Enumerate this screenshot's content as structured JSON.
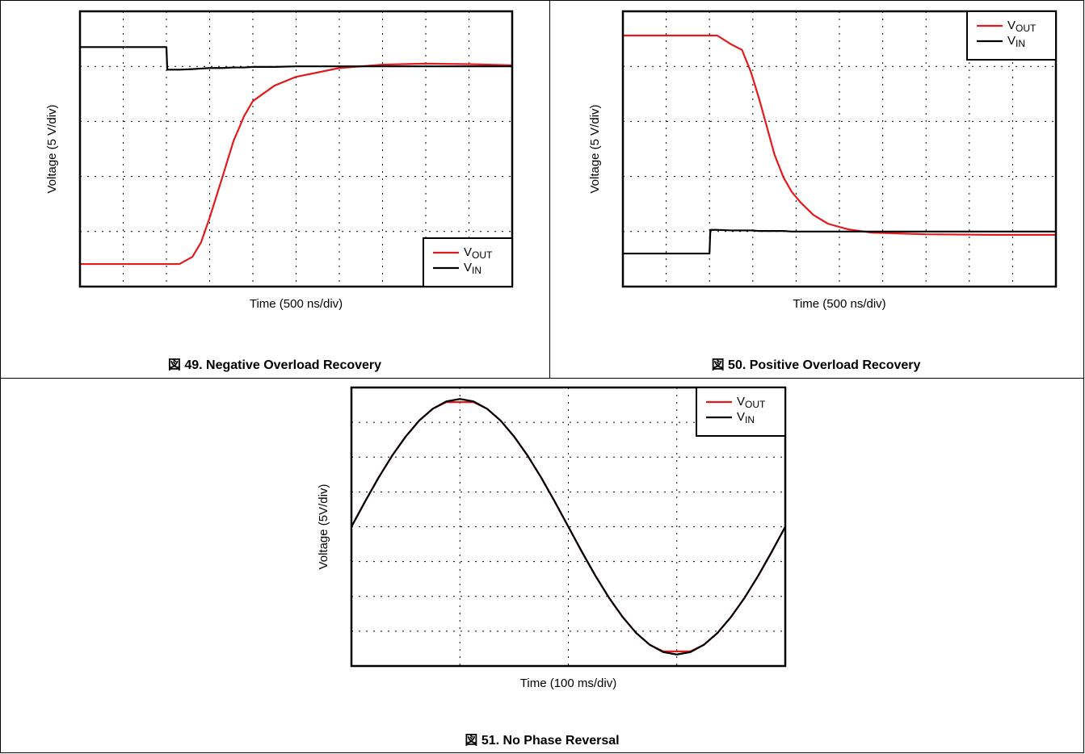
{
  "chart_data": [
    {
      "type": "line",
      "title": "図 49. Negative Overload Recovery",
      "xlabel": "Time (500 ns/div)",
      "ylabel": "Voltage (5 V/div)",
      "x": [
        0,
        1,
        2,
        2.02,
        2.1,
        2.3,
        2.6,
        2.8,
        3,
        3.3,
        3.55,
        3.8,
        4,
        4.5,
        5,
        6,
        7,
        8,
        9,
        10
      ],
      "series": [
        {
          "name": "VOUT",
          "color": "#e31a1c",
          "values": [
            0.41,
            0.41,
            0.41,
            0.41,
            0.41,
            0.41,
            0.54,
            0.8,
            1.25,
            2.0,
            2.64,
            3.1,
            3.37,
            3.65,
            3.81,
            3.97,
            4.03,
            4.05,
            4.04,
            4.02
          ]
        },
        {
          "name": "VIN",
          "color": "#000000",
          "values": [
            4.35,
            4.35,
            4.35,
            3.94,
            3.94,
            3.94,
            3.95,
            3.96,
            3.97,
            3.97,
            3.98,
            3.98,
            3.99,
            3.99,
            4,
            4,
            4,
            4,
            4,
            4
          ]
        }
      ],
      "xlim": [
        0,
        10
      ],
      "ylim": [
        0,
        5
      ],
      "xticks": [
        1,
        2,
        3,
        4,
        5,
        6,
        7,
        8,
        9
      ],
      "yticks": [
        1,
        2,
        3,
        4
      ],
      "grid": true,
      "legend": "lower right"
    },
    {
      "type": "line",
      "title": "図 50. Positive Overload Recovery",
      "xlabel": "Time (500 ns/div)",
      "ylabel": "Voltage (5 V/div)",
      "x": [
        0,
        1,
        2,
        2.02,
        2.18,
        2.5,
        2.75,
        2.96,
        3.15,
        3.34,
        3.5,
        3.71,
        3.9,
        4.09,
        4.4,
        4.74,
        5.2,
        5.75,
        7,
        8.5,
        10
      ],
      "series": [
        {
          "name": "VOUT",
          "color": "#e31a1c",
          "values": [
            4.56,
            4.56,
            4.56,
            4.56,
            4.56,
            4.4,
            4.3,
            3.89,
            3.4,
            2.86,
            2.4,
            1.98,
            1.72,
            1.54,
            1.3,
            1.14,
            1.04,
            0.98,
            0.95,
            0.94,
            0.94
          ]
        },
        {
          "name": "VIN",
          "color": "#000000",
          "values": [
            0.6,
            0.6,
            0.6,
            1.03,
            1.03,
            1.02,
            1.02,
            1.02,
            1.01,
            1.01,
            1.01,
            1.01,
            1.0,
            1.0,
            1,
            1,
            1,
            1,
            1,
            1,
            1
          ]
        }
      ],
      "xlim": [
        0,
        10
      ],
      "ylim": [
        0,
        5
      ],
      "xticks": [
        1,
        2,
        3,
        4,
        5,
        6,
        7,
        8,
        9
      ],
      "yticks": [
        1,
        2,
        3,
        4
      ],
      "grid": true,
      "legend": "upper right"
    },
    {
      "type": "line",
      "title": "図 51. No Phase Reversal",
      "xlabel": "Time (100 ms/div)",
      "ylabel": "Voltage (5V/div)",
      "x": [
        0,
        0.125,
        0.25,
        0.375,
        0.5,
        0.625,
        0.75,
        0.875,
        1,
        1.125,
        1.25,
        1.375,
        1.5,
        1.625,
        1.75,
        1.875,
        2,
        2.125,
        2.25,
        2.375,
        2.5,
        2.625,
        2.75,
        2.875,
        3,
        3.125,
        3.25,
        3.375,
        3.5,
        3.625,
        3.75,
        3.875,
        4
      ],
      "series": [
        {
          "name": "VOUT",
          "color": "#e31a1c",
          "values": [
            4,
            4.72,
            5.41,
            6.04,
            6.59,
            7.05,
            7.39,
            7.58,
            7.58,
            7.58,
            7.39,
            7.05,
            6.59,
            6.04,
            5.41,
            4.72,
            4,
            3.28,
            2.59,
            1.96,
            1.41,
            0.95,
            0.61,
            0.42,
            0.42,
            0.42,
            0.61,
            0.95,
            1.41,
            1.96,
            2.59,
            3.28,
            4
          ]
        },
        {
          "name": "VIN",
          "color": "#000000",
          "values": [
            4,
            4.72,
            5.41,
            6.04,
            6.59,
            7.05,
            7.39,
            7.6,
            7.67,
            7.6,
            7.39,
            7.05,
            6.59,
            6.04,
            5.41,
            4.72,
            4,
            3.28,
            2.59,
            1.96,
            1.41,
            0.95,
            0.61,
            0.4,
            0.33,
            0.4,
            0.61,
            0.95,
            1.41,
            1.96,
            2.59,
            3.28,
            4
          ]
        }
      ],
      "xlim": [
        0,
        4
      ],
      "ylim": [
        0,
        8
      ],
      "xticks": [
        1,
        2,
        3
      ],
      "yticks": [
        1,
        2,
        3,
        4,
        5,
        6,
        7
      ],
      "grid": true,
      "legend": "upper right"
    }
  ]
}
